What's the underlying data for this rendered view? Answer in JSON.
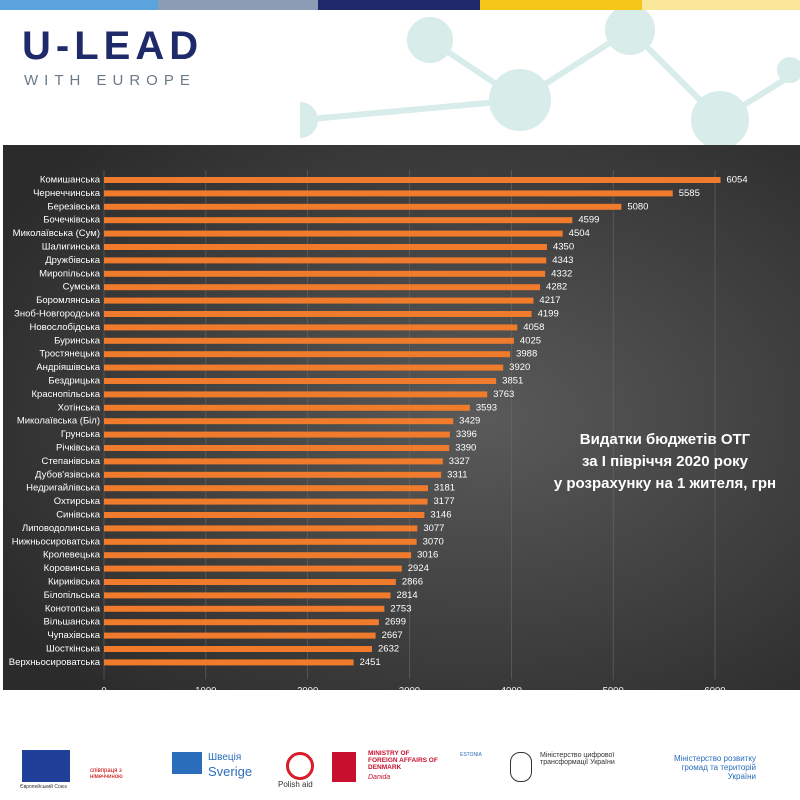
{
  "header": {
    "logo": "U-LEAD",
    "tagline": "WITH EUROPE"
  },
  "chart_data": {
    "type": "bar",
    "orientation": "horizontal",
    "title": [
      "Видатки бюджетів ОТГ",
      "за І півріччя 2020 року",
      "у розрахунку на 1 жителя, грн"
    ],
    "categories": [
      "Комишанська",
      "Чернеччинська",
      "Березівська",
      "Бочечківська",
      "Миколаївська (Сум)",
      "Шалигинська",
      "Дружбівська",
      "Миропільська",
      "Сумська",
      "Боромлянська",
      "Зноб-Новгородська",
      "Новослобідська",
      "Буринська",
      "Тростянецька",
      "Андріяшівська",
      "Бездрицька",
      "Краснопільська",
      "Хотінська",
      "Миколаївська (Біл)",
      "Грунська",
      "Річківська",
      "Степанівська",
      "Дубов'язівська",
      "Недригайлівська",
      "Охтирська",
      "Синівська",
      "Липоводолинська",
      "Нижньосироватська",
      "Кролевецька",
      "Коровинська",
      "Кириківська",
      "Білопільська",
      "Конотопська",
      "Вільшанська",
      "Чупахівська",
      "Шосткінська",
      "Верхньосироватська"
    ],
    "values": [
      6054,
      5585,
      5080,
      4599,
      4504,
      4350,
      4343,
      4332,
      4282,
      4217,
      4199,
      4058,
      4025,
      3988,
      3920,
      3851,
      3763,
      3593,
      3429,
      3396,
      3390,
      3327,
      3311,
      3181,
      3177,
      3146,
      3077,
      3070,
      3016,
      2924,
      2866,
      2814,
      2753,
      2699,
      2667,
      2632,
      2451
    ],
    "color": "#f07b2c",
    "xlim": [
      0,
      6000
    ],
    "xticks": [
      0,
      1000,
      2000,
      3000,
      4000,
      5000,
      6000
    ],
    "grid": true
  },
  "footer": {
    "eu": "Європейський Союз",
    "germany": "співпраця з німеччиною",
    "sweden_1": "Швеція",
    "sweden_2": "Sverige",
    "poland": "Polish aid",
    "denmark": "MINISTRY OF FOREIGN AFFAIRS OF DENMARK",
    "danida": "Danida",
    "estonia": "ESTONIA",
    "digital": "Міністерство цифрової трансформації України",
    "regional": "Міністерство розвитку громад та територій України"
  }
}
